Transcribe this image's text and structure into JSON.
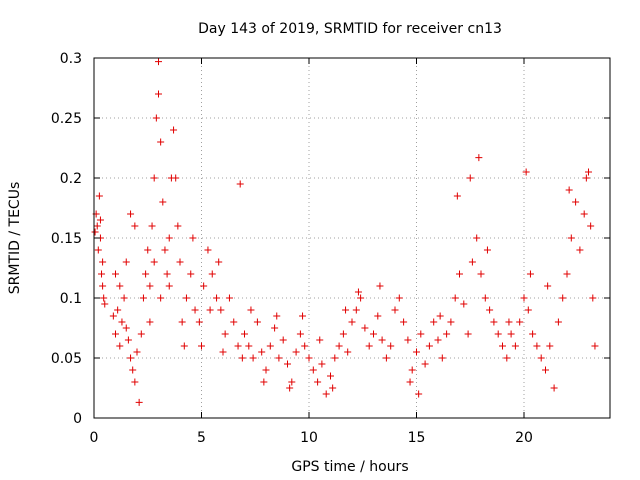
{
  "chart_data": {
    "type": "scatter",
    "title": "Day 143 of 2019, SRMTID for receiver cn13",
    "xlabel": "GPS time / hours",
    "ylabel": "SRMTID / TECUs",
    "xlim": [
      0,
      24
    ],
    "ylim": [
      0,
      0.3
    ],
    "xticks": [
      0,
      5,
      10,
      15,
      20
    ],
    "xtick_labels": [
      "0",
      "5",
      "10",
      "15",
      "20"
    ],
    "yticks": [
      0,
      0.05,
      0.1,
      0.15,
      0.2,
      0.25,
      0.3
    ],
    "ytick_labels": [
      "0",
      "0.05",
      "0.1",
      "0.15",
      "0.2",
      "0.25",
      "0.3"
    ],
    "grid": true,
    "marker": "+",
    "color": "#e00000",
    "series": [
      {
        "name": "SRMTID",
        "points": [
          [
            0.05,
            0.155
          ],
          [
            0.1,
            0.17
          ],
          [
            0.15,
            0.16
          ],
          [
            0.2,
            0.14
          ],
          [
            0.25,
            0.185
          ],
          [
            0.3,
            0.15
          ],
          [
            0.35,
            0.12
          ],
          [
            0.4,
            0.11
          ],
          [
            0.45,
            0.1
          ],
          [
            0.5,
            0.095
          ],
          [
            0.4,
            0.13
          ],
          [
            0.3,
            0.165
          ],
          [
            0.9,
            0.085
          ],
          [
            1.0,
            0.07
          ],
          [
            1.1,
            0.09
          ],
          [
            1.2,
            0.06
          ],
          [
            1.3,
            0.08
          ],
          [
            1.4,
            0.1
          ],
          [
            1.5,
            0.075
          ],
          [
            1.6,
            0.065
          ],
          [
            1.7,
            0.05
          ],
          [
            1.8,
            0.04
          ],
          [
            1.9,
            0.03
          ],
          [
            2.0,
            0.055
          ],
          [
            2.1,
            0.013
          ],
          [
            2.2,
            0.07
          ],
          [
            1.0,
            0.12
          ],
          [
            1.2,
            0.11
          ],
          [
            1.5,
            0.13
          ],
          [
            1.7,
            0.17
          ],
          [
            1.9,
            0.16
          ],
          [
            2.3,
            0.1
          ],
          [
            2.4,
            0.12
          ],
          [
            2.5,
            0.14
          ],
          [
            2.6,
            0.11
          ],
          [
            2.7,
            0.16
          ],
          [
            2.8,
            0.2
          ],
          [
            2.9,
            0.25
          ],
          [
            3.0,
            0.297
          ],
          [
            3.0,
            0.27
          ],
          [
            3.1,
            0.23
          ],
          [
            3.2,
            0.18
          ],
          [
            3.3,
            0.14
          ],
          [
            3.4,
            0.12
          ],
          [
            3.5,
            0.15
          ],
          [
            3.6,
            0.2
          ],
          [
            3.7,
            0.24
          ],
          [
            3.8,
            0.2
          ],
          [
            3.9,
            0.16
          ],
          [
            4.0,
            0.13
          ],
          [
            4.1,
            0.08
          ],
          [
            4.2,
            0.06
          ],
          [
            2.6,
            0.08
          ],
          [
            2.8,
            0.13
          ],
          [
            3.1,
            0.1
          ],
          [
            3.5,
            0.11
          ],
          [
            4.3,
            0.1
          ],
          [
            4.5,
            0.12
          ],
          [
            4.7,
            0.09
          ],
          [
            4.9,
            0.08
          ],
          [
            5.1,
            0.11
          ],
          [
            5.3,
            0.14
          ],
          [
            5.5,
            0.12
          ],
          [
            5.7,
            0.1
          ],
          [
            5.9,
            0.09
          ],
          [
            6.1,
            0.07
          ],
          [
            6.3,
            0.1
          ],
          [
            6.5,
            0.08
          ],
          [
            6.7,
            0.06
          ],
          [
            6.8,
            0.195
          ],
          [
            6.9,
            0.05
          ],
          [
            4.6,
            0.15
          ],
          [
            5.0,
            0.06
          ],
          [
            5.4,
            0.09
          ],
          [
            5.8,
            0.13
          ],
          [
            6.0,
            0.055
          ],
          [
            7.0,
            0.07
          ],
          [
            7.2,
            0.06
          ],
          [
            7.4,
            0.05
          ],
          [
            7.6,
            0.08
          ],
          [
            7.8,
            0.055
          ],
          [
            8.0,
            0.04
          ],
          [
            8.2,
            0.06
          ],
          [
            8.4,
            0.075
          ],
          [
            8.6,
            0.05
          ],
          [
            8.8,
            0.065
          ],
          [
            9.0,
            0.045
          ],
          [
            9.2,
            0.03
          ],
          [
            9.4,
            0.055
          ],
          [
            9.6,
            0.07
          ],
          [
            9.8,
            0.06
          ],
          [
            7.3,
            0.09
          ],
          [
            7.9,
            0.03
          ],
          [
            8.5,
            0.085
          ],
          [
            9.1,
            0.025
          ],
          [
            9.7,
            0.085
          ],
          [
            10.0,
            0.05
          ],
          [
            10.2,
            0.04
          ],
          [
            10.4,
            0.03
          ],
          [
            10.6,
            0.045
          ],
          [
            10.8,
            0.02
          ],
          [
            11.0,
            0.035
          ],
          [
            11.2,
            0.05
          ],
          [
            11.4,
            0.06
          ],
          [
            11.6,
            0.07
          ],
          [
            11.8,
            0.055
          ],
          [
            12.0,
            0.08
          ],
          [
            12.2,
            0.09
          ],
          [
            12.4,
            0.1
          ],
          [
            12.6,
            0.075
          ],
          [
            12.8,
            0.06
          ],
          [
            10.5,
            0.065
          ],
          [
            11.1,
            0.025
          ],
          [
            11.7,
            0.09
          ],
          [
            12.3,
            0.105
          ],
          [
            13.0,
            0.07
          ],
          [
            13.2,
            0.085
          ],
          [
            13.4,
            0.065
          ],
          [
            13.6,
            0.05
          ],
          [
            13.8,
            0.06
          ],
          [
            14.0,
            0.09
          ],
          [
            14.2,
            0.1
          ],
          [
            14.4,
            0.08
          ],
          [
            14.6,
            0.065
          ],
          [
            14.8,
            0.04
          ],
          [
            15.0,
            0.055
          ],
          [
            15.2,
            0.07
          ],
          [
            15.4,
            0.045
          ],
          [
            15.6,
            0.06
          ],
          [
            15.8,
            0.08
          ],
          [
            16.0,
            0.065
          ],
          [
            16.2,
            0.05
          ],
          [
            16.4,
            0.07
          ],
          [
            13.3,
            0.11
          ],
          [
            14.7,
            0.03
          ],
          [
            15.1,
            0.02
          ],
          [
            16.1,
            0.085
          ],
          [
            16.6,
            0.08
          ],
          [
            16.8,
            0.1
          ],
          [
            17.0,
            0.12
          ],
          [
            17.2,
            0.095
          ],
          [
            17.4,
            0.07
          ],
          [
            17.6,
            0.13
          ],
          [
            17.8,
            0.15
          ],
          [
            18.0,
            0.12
          ],
          [
            18.2,
            0.1
          ],
          [
            18.4,
            0.09
          ],
          [
            18.6,
            0.08
          ],
          [
            18.8,
            0.07
          ],
          [
            19.0,
            0.06
          ],
          [
            19.2,
            0.05
          ],
          [
            19.4,
            0.07
          ],
          [
            17.5,
            0.2
          ],
          [
            17.9,
            0.217
          ],
          [
            16.9,
            0.185
          ],
          [
            18.3,
            0.14
          ],
          [
            19.3,
            0.08
          ],
          [
            19.6,
            0.06
          ],
          [
            19.8,
            0.08
          ],
          [
            20.0,
            0.1
          ],
          [
            20.1,
            0.205
          ],
          [
            20.2,
            0.09
          ],
          [
            20.4,
            0.07
          ],
          [
            20.6,
            0.06
          ],
          [
            20.8,
            0.05
          ],
          [
            21.0,
            0.04
          ],
          [
            21.2,
            0.06
          ],
          [
            21.4,
            0.025
          ],
          [
            21.6,
            0.08
          ],
          [
            21.8,
            0.1
          ],
          [
            22.0,
            0.12
          ],
          [
            22.2,
            0.15
          ],
          [
            22.4,
            0.18
          ],
          [
            22.6,
            0.14
          ],
          [
            22.8,
            0.17
          ],
          [
            23.0,
            0.205
          ],
          [
            23.1,
            0.16
          ],
          [
            23.2,
            0.1
          ],
          [
            23.3,
            0.06
          ],
          [
            20.3,
            0.12
          ],
          [
            21.1,
            0.11
          ],
          [
            22.1,
            0.19
          ],
          [
            22.9,
            0.2
          ]
        ]
      }
    ]
  }
}
